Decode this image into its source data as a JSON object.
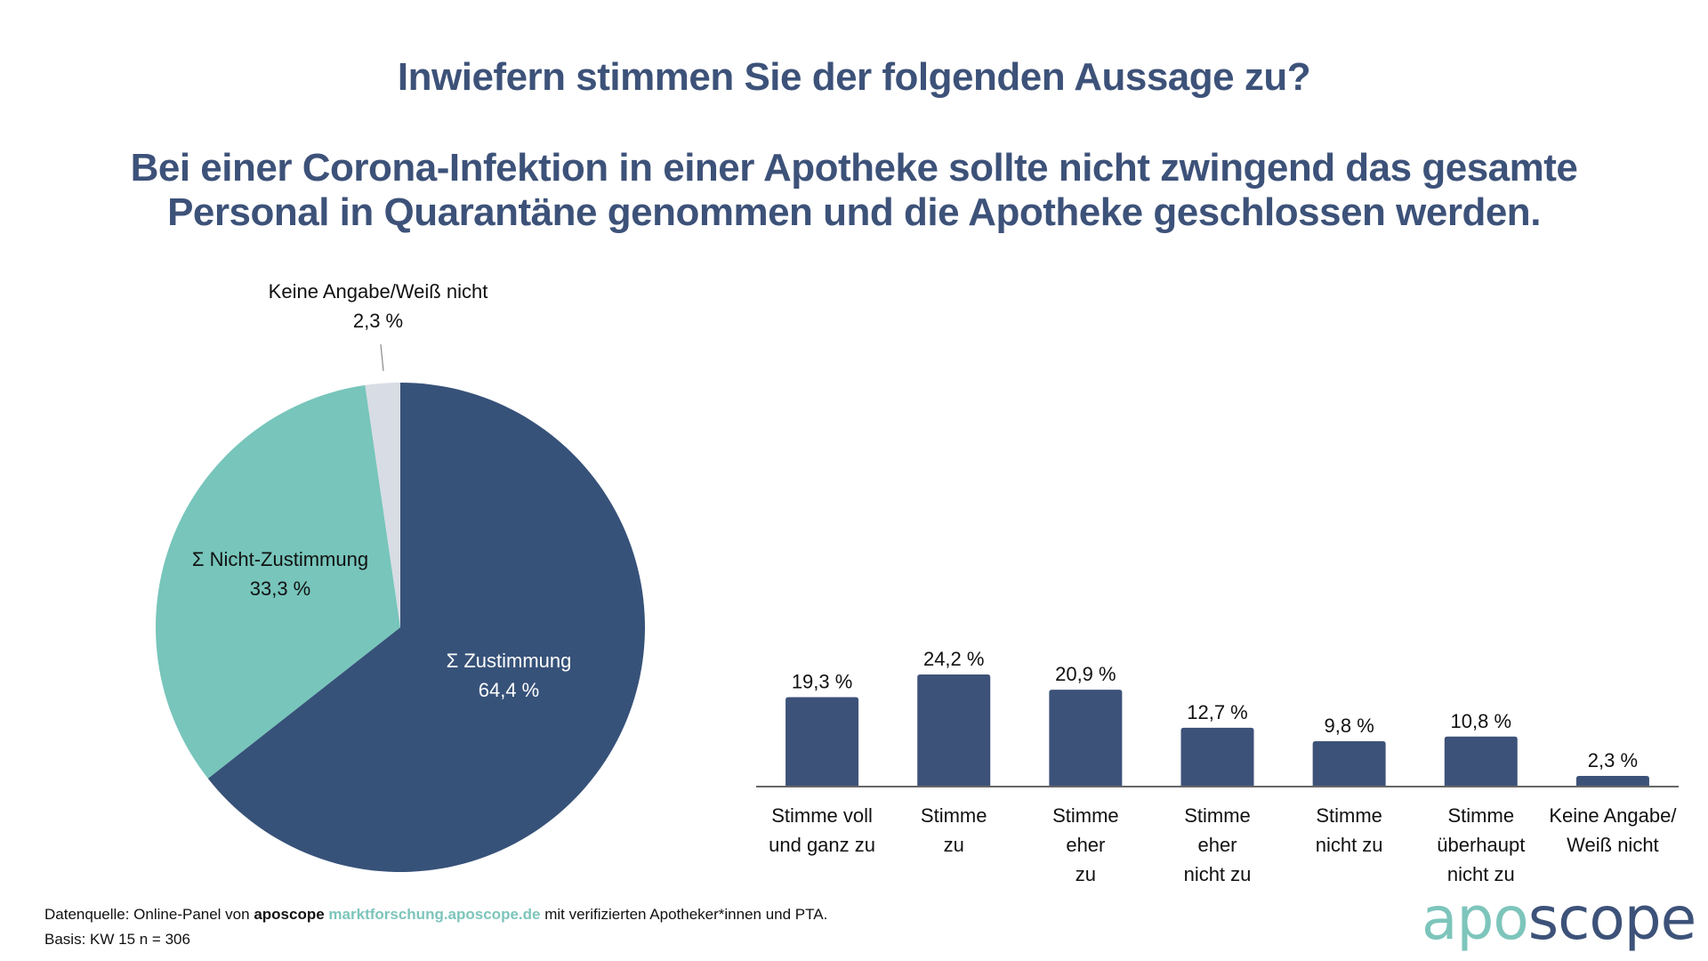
{
  "header": {
    "question": "Inwiefern stimmen Sie der folgenden Aussage zu?",
    "statement_line1": "Bei einer Corona-Infektion in einer Apotheke sollte nicht zwingend das gesamte",
    "statement_line2": "Personal in Quarantäne genommen und die Apotheke geschlossen werden."
  },
  "colors": {
    "title": "#3d5279",
    "zustimmung": "#375279",
    "nicht_zustimmung": "#77c5bb",
    "keine_angabe": "#d8dce4",
    "bar": "#3d5279",
    "axis": "#666666"
  },
  "chart_data": [
    {
      "type": "pie",
      "title": "",
      "slices": [
        {
          "label": "Σ Zustimmung",
          "value": 64.4,
          "value_label": "64,4 %",
          "color": "#375279"
        },
        {
          "label": "Σ Nicht-Zustimmung",
          "value": 33.3,
          "value_label": "33,3 %",
          "color": "#77c5bb"
        },
        {
          "label": "Keine Angabe/Weiß nicht",
          "value": 2.3,
          "value_label": "2,3 %",
          "color": "#d8dce4"
        }
      ],
      "start_angle": "12 o'clock",
      "direction": "clockwise"
    },
    {
      "type": "bar",
      "title": "",
      "categories": [
        [
          "Stimme voll",
          "und ganz zu"
        ],
        [
          "Stimme",
          "zu"
        ],
        [
          "Stimme",
          "eher",
          "zu"
        ],
        [
          "Stimme",
          "eher",
          "nicht zu"
        ],
        [
          "Stimme",
          "nicht zu"
        ],
        [
          "Stimme",
          "überhaupt",
          "nicht zu"
        ],
        [
          "Keine Angabe/",
          "Weiß nicht"
        ]
      ],
      "values": [
        19.3,
        24.2,
        20.9,
        12.7,
        9.8,
        10.8,
        2.3
      ],
      "value_labels": [
        "19,3 %",
        "24,2 %",
        "20,9 %",
        "12,7 %",
        "9,8 %",
        "10,8 %",
        "2,3 %"
      ],
      "xlabel": "",
      "ylabel": "",
      "ylim": [
        0,
        25
      ],
      "grid": false,
      "legend": "none"
    }
  ],
  "footer": {
    "source_prefix": "Datenquelle: Online-Panel von ",
    "source_brand": "aposcope",
    "source_link": "marktforschung.aposcope.de",
    "source_suffix": " mit verifizierten Apotheker*innen und PTA.",
    "basis": "Basis: KW 15 n = 306"
  },
  "logo": {
    "part1": "apo",
    "part2": "scope"
  }
}
